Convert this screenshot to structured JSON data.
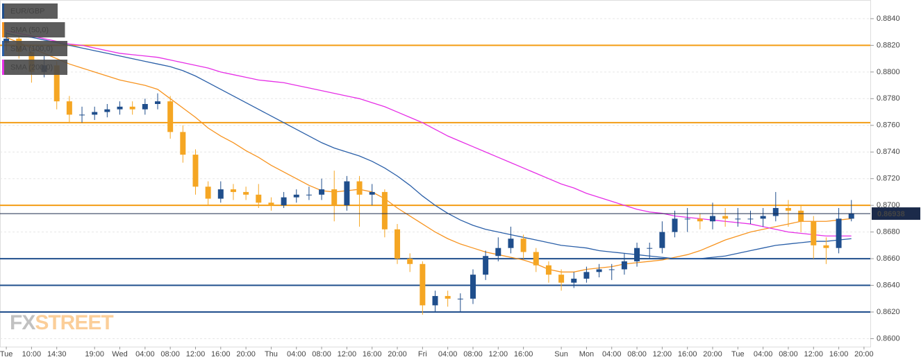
{
  "chart_data": {
    "type": "candlestick",
    "categories": [
      "Tue",
      null,
      "10:00",
      null,
      "14:30",
      null,
      null,
      "19:00",
      null,
      "Wed",
      null,
      "04:00",
      null,
      "08:00",
      null,
      "12:00",
      null,
      "16:00",
      null,
      "20:00",
      null,
      "Thu",
      null,
      "04:00",
      null,
      "08:00",
      null,
      "12:00",
      null,
      "16:00",
      null,
      "20:00",
      null,
      "Fri",
      null,
      "04:00",
      null,
      "08:00",
      null,
      "12:00",
      null,
      "16:00",
      null,
      null,
      "Sun",
      null,
      "Mon",
      null,
      "04:00",
      null,
      "08:00",
      null,
      "12:00",
      null,
      "16:00",
      null,
      "20:00",
      null,
      "Tue",
      null,
      "04:00",
      null,
      "08:00",
      null,
      "12:00",
      null,
      "16:00",
      null,
      "20:00"
    ],
    "series": [
      {
        "name": "EUR/GBP",
        "type": "candlestick",
        "color": "#1f4e8c",
        "down_color": "#f5a623",
        "open": [
          0.8822,
          0.8825,
          0.8815,
          0.88,
          0.8805,
          0.8778,
          0.8768,
          0.8768,
          0.877,
          0.8772,
          0.8774,
          0.8772,
          0.8776,
          0.8778,
          0.8755,
          0.8738,
          0.8714,
          0.8705,
          0.8712,
          0.871,
          0.8708,
          0.8702,
          0.87,
          0.8706,
          0.8708,
          0.8708,
          0.8712,
          0.87,
          0.8718,
          0.8708,
          0.871,
          0.8682,
          0.866,
          0.8656,
          0.8625,
          0.8632,
          0.863,
          0.863,
          0.8648,
          0.8662,
          0.8668,
          0.8675,
          0.8665,
          0.8655,
          0.8648,
          0.8642,
          0.8645,
          0.865,
          0.8652,
          0.8652,
          0.8658,
          0.8668,
          0.8668,
          0.868,
          0.869,
          0.869,
          0.8688,
          0.8692,
          0.869,
          0.869,
          0.869,
          0.8692,
          0.8698,
          0.8696,
          0.8688,
          0.867,
          0.8668,
          0.869,
          null
        ],
        "high": [
          0.883,
          0.8828,
          0.8818,
          0.8812,
          0.8808,
          0.8782,
          0.8774,
          0.8774,
          0.8776,
          0.8778,
          0.8778,
          0.878,
          0.8784,
          0.8782,
          0.876,
          0.8742,
          0.8718,
          0.8718,
          0.8716,
          0.8714,
          0.8716,
          0.8706,
          0.871,
          0.8712,
          0.8714,
          0.872,
          0.8726,
          0.8722,
          0.8722,
          0.8716,
          0.8712,
          0.8686,
          0.8664,
          0.8658,
          0.8636,
          0.8636,
          0.8634,
          0.8652,
          0.8666,
          0.8676,
          0.8684,
          0.8678,
          0.8668,
          0.8658,
          0.8652,
          0.865,
          0.8654,
          0.8656,
          0.8656,
          0.8664,
          0.8672,
          0.8672,
          0.8688,
          0.8696,
          0.8698,
          0.8694,
          0.8702,
          0.8698,
          0.8698,
          0.8696,
          0.8698,
          0.871,
          0.8704,
          0.87,
          0.8692,
          0.8676,
          0.8698,
          0.8704,
          null
        ],
        "low": [
          0.8816,
          0.881,
          0.8792,
          0.8796,
          0.8772,
          0.8762,
          0.8762,
          0.8764,
          0.8766,
          0.8768,
          0.8768,
          0.8768,
          0.8772,
          0.875,
          0.8732,
          0.8708,
          0.87,
          0.8702,
          0.8704,
          0.8704,
          0.8698,
          0.8696,
          0.8698,
          0.8702,
          0.8704,
          0.8704,
          0.8688,
          0.8696,
          0.8684,
          0.87,
          0.8676,
          0.8656,
          0.865,
          0.8618,
          0.862,
          0.8624,
          0.862,
          0.8626,
          0.8644,
          0.8658,
          0.8664,
          0.866,
          0.865,
          0.8642,
          0.8636,
          0.8638,
          0.8642,
          0.8646,
          0.8644,
          0.8648,
          0.8654,
          0.866,
          0.8664,
          0.8676,
          0.868,
          0.8682,
          0.8682,
          0.8684,
          0.8684,
          0.8686,
          0.8684,
          0.8688,
          0.8684,
          0.868,
          0.866,
          0.8656,
          0.8664,
          0.8688,
          null
        ],
        "close": [
          0.8825,
          0.8815,
          0.88,
          0.8805,
          0.8778,
          0.8768,
          0.8768,
          0.877,
          0.8772,
          0.8774,
          0.8772,
          0.8776,
          0.8778,
          0.8755,
          0.8738,
          0.8714,
          0.8705,
          0.8712,
          0.871,
          0.8708,
          0.8702,
          0.87,
          0.8706,
          0.8708,
          0.8708,
          0.8712,
          0.87,
          0.8718,
          0.8708,
          0.871,
          0.8682,
          0.866,
          0.8656,
          0.8625,
          0.8632,
          0.863,
          0.863,
          0.8648,
          0.8662,
          0.8668,
          0.8675,
          0.8665,
          0.8655,
          0.8648,
          0.8642,
          0.8645,
          0.865,
          0.8652,
          0.8652,
          0.8658,
          0.8668,
          0.8668,
          0.868,
          0.869,
          0.869,
          0.8688,
          0.8692,
          0.869,
          0.869,
          0.869,
          0.8692,
          0.8698,
          0.8696,
          0.8688,
          0.867,
          0.8668,
          0.869,
          0.8694,
          null
        ]
      },
      {
        "name": "SMA (50,0)",
        "type": "line",
        "color": "#f7931e",
        "values": [
          0.8826,
          0.8822,
          0.8818,
          0.8814,
          0.881,
          0.8806,
          0.8803,
          0.88,
          0.8797,
          0.8794,
          0.8792,
          0.879,
          0.8787,
          0.878,
          0.8773,
          0.8766,
          0.8758,
          0.8752,
          0.8747,
          0.8741,
          0.8736,
          0.873,
          0.8725,
          0.872,
          0.8715,
          0.8711,
          0.871,
          0.8711,
          0.8712,
          0.871,
          0.8705,
          0.8698,
          0.8692,
          0.8686,
          0.868,
          0.8675,
          0.8671,
          0.8668,
          0.8665,
          0.8663,
          0.8661,
          0.8659,
          0.8656,
          0.8652,
          0.865,
          0.865,
          0.8652,
          0.8653,
          0.8654,
          0.8656,
          0.8657,
          0.8658,
          0.8659,
          0.8661,
          0.8663,
          0.8666,
          0.867,
          0.8674,
          0.8677,
          0.868,
          0.8682,
          0.8684,
          0.8686,
          0.8688,
          0.8688,
          0.8688,
          0.8689,
          0.869,
          null
        ]
      },
      {
        "name": "SMA (100,0)",
        "type": "line",
        "color": "#2a5fa8",
        "values": [
          0.8829,
          0.8827,
          0.8826,
          0.8824,
          0.8822,
          0.882,
          0.8818,
          0.8816,
          0.8814,
          0.8812,
          0.881,
          0.8808,
          0.8806,
          0.8804,
          0.8801,
          0.8797,
          0.8792,
          0.8787,
          0.8782,
          0.8777,
          0.8772,
          0.8767,
          0.8762,
          0.8757,
          0.8752,
          0.8747,
          0.8743,
          0.874,
          0.8737,
          0.8733,
          0.8728,
          0.8722,
          0.8715,
          0.8707,
          0.87,
          0.8694,
          0.8689,
          0.8685,
          0.8682,
          0.868,
          0.8678,
          0.8676,
          0.8674,
          0.8672,
          0.867,
          0.8669,
          0.8668,
          0.8666,
          0.8665,
          0.8664,
          0.8663,
          0.8662,
          0.8661,
          0.866,
          0.866,
          0.866,
          0.8661,
          0.8662,
          0.8664,
          0.8666,
          0.8668,
          0.867,
          0.8671,
          0.8672,
          0.8673,
          0.8673,
          0.8674,
          0.8675,
          null
        ]
      },
      {
        "name": "SMA (200,0)",
        "type": "line",
        "color": "#e62ee6",
        "values": [
          0.8831,
          0.8829,
          0.8827,
          0.8825,
          0.8823,
          0.8821,
          0.882,
          0.8818,
          0.8816,
          0.8814,
          0.8813,
          0.8812,
          0.8811,
          0.8809,
          0.8807,
          0.8805,
          0.8803,
          0.88,
          0.8798,
          0.8796,
          0.8794,
          0.8793,
          0.8792,
          0.879,
          0.8788,
          0.8786,
          0.8784,
          0.8782,
          0.878,
          0.8777,
          0.8774,
          0.877,
          0.8766,
          0.8762,
          0.8757,
          0.8752,
          0.8748,
          0.8744,
          0.874,
          0.8736,
          0.8732,
          0.8728,
          0.8724,
          0.872,
          0.8716,
          0.8713,
          0.8709,
          0.8706,
          0.8703,
          0.87,
          0.8697,
          0.8695,
          0.8694,
          0.8692,
          0.8691,
          0.869,
          0.8689,
          0.8688,
          0.8687,
          0.8686,
          0.8684,
          0.8682,
          0.868,
          0.8679,
          0.8678,
          0.8677,
          0.8677,
          0.8677,
          null
        ]
      }
    ],
    "ylim": [
      0.8594,
      0.8854
    ],
    "yticks": [
      {
        "value": 0.86,
        "label": "0.8600"
      },
      {
        "value": 0.862,
        "label": "0.8620"
      },
      {
        "value": 0.864,
        "label": "0.8640"
      },
      {
        "value": 0.866,
        "label": "0.8660"
      },
      {
        "value": 0.868,
        "label": "0.8680"
      },
      {
        "value": 0.87,
        "label": "0.8700"
      },
      {
        "value": 0.872,
        "label": "0.8720"
      },
      {
        "value": 0.874,
        "label": "0.8740"
      },
      {
        "value": 0.876,
        "label": "0.8760"
      },
      {
        "value": 0.878,
        "label": "0.8780"
      },
      {
        "value": 0.88,
        "label": "0.8800"
      },
      {
        "value": 0.882,
        "label": "0.8820"
      },
      {
        "value": 0.884,
        "label": "0.8840"
      }
    ],
    "grid": true,
    "levels": [
      {
        "value": 0.882,
        "color": "#f39c12"
      },
      {
        "value": 0.8762,
        "color": "#f39c12"
      },
      {
        "value": 0.87,
        "color": "#f39c12"
      },
      {
        "value": 0.866,
        "color": "#1f4e8c"
      },
      {
        "value": 0.864,
        "color": "#1f4e8c"
      },
      {
        "value": 0.862,
        "color": "#1f4e8c"
      }
    ],
    "last_price": 0.86938,
    "watermark": [
      "FX",
      "STREET"
    ]
  }
}
